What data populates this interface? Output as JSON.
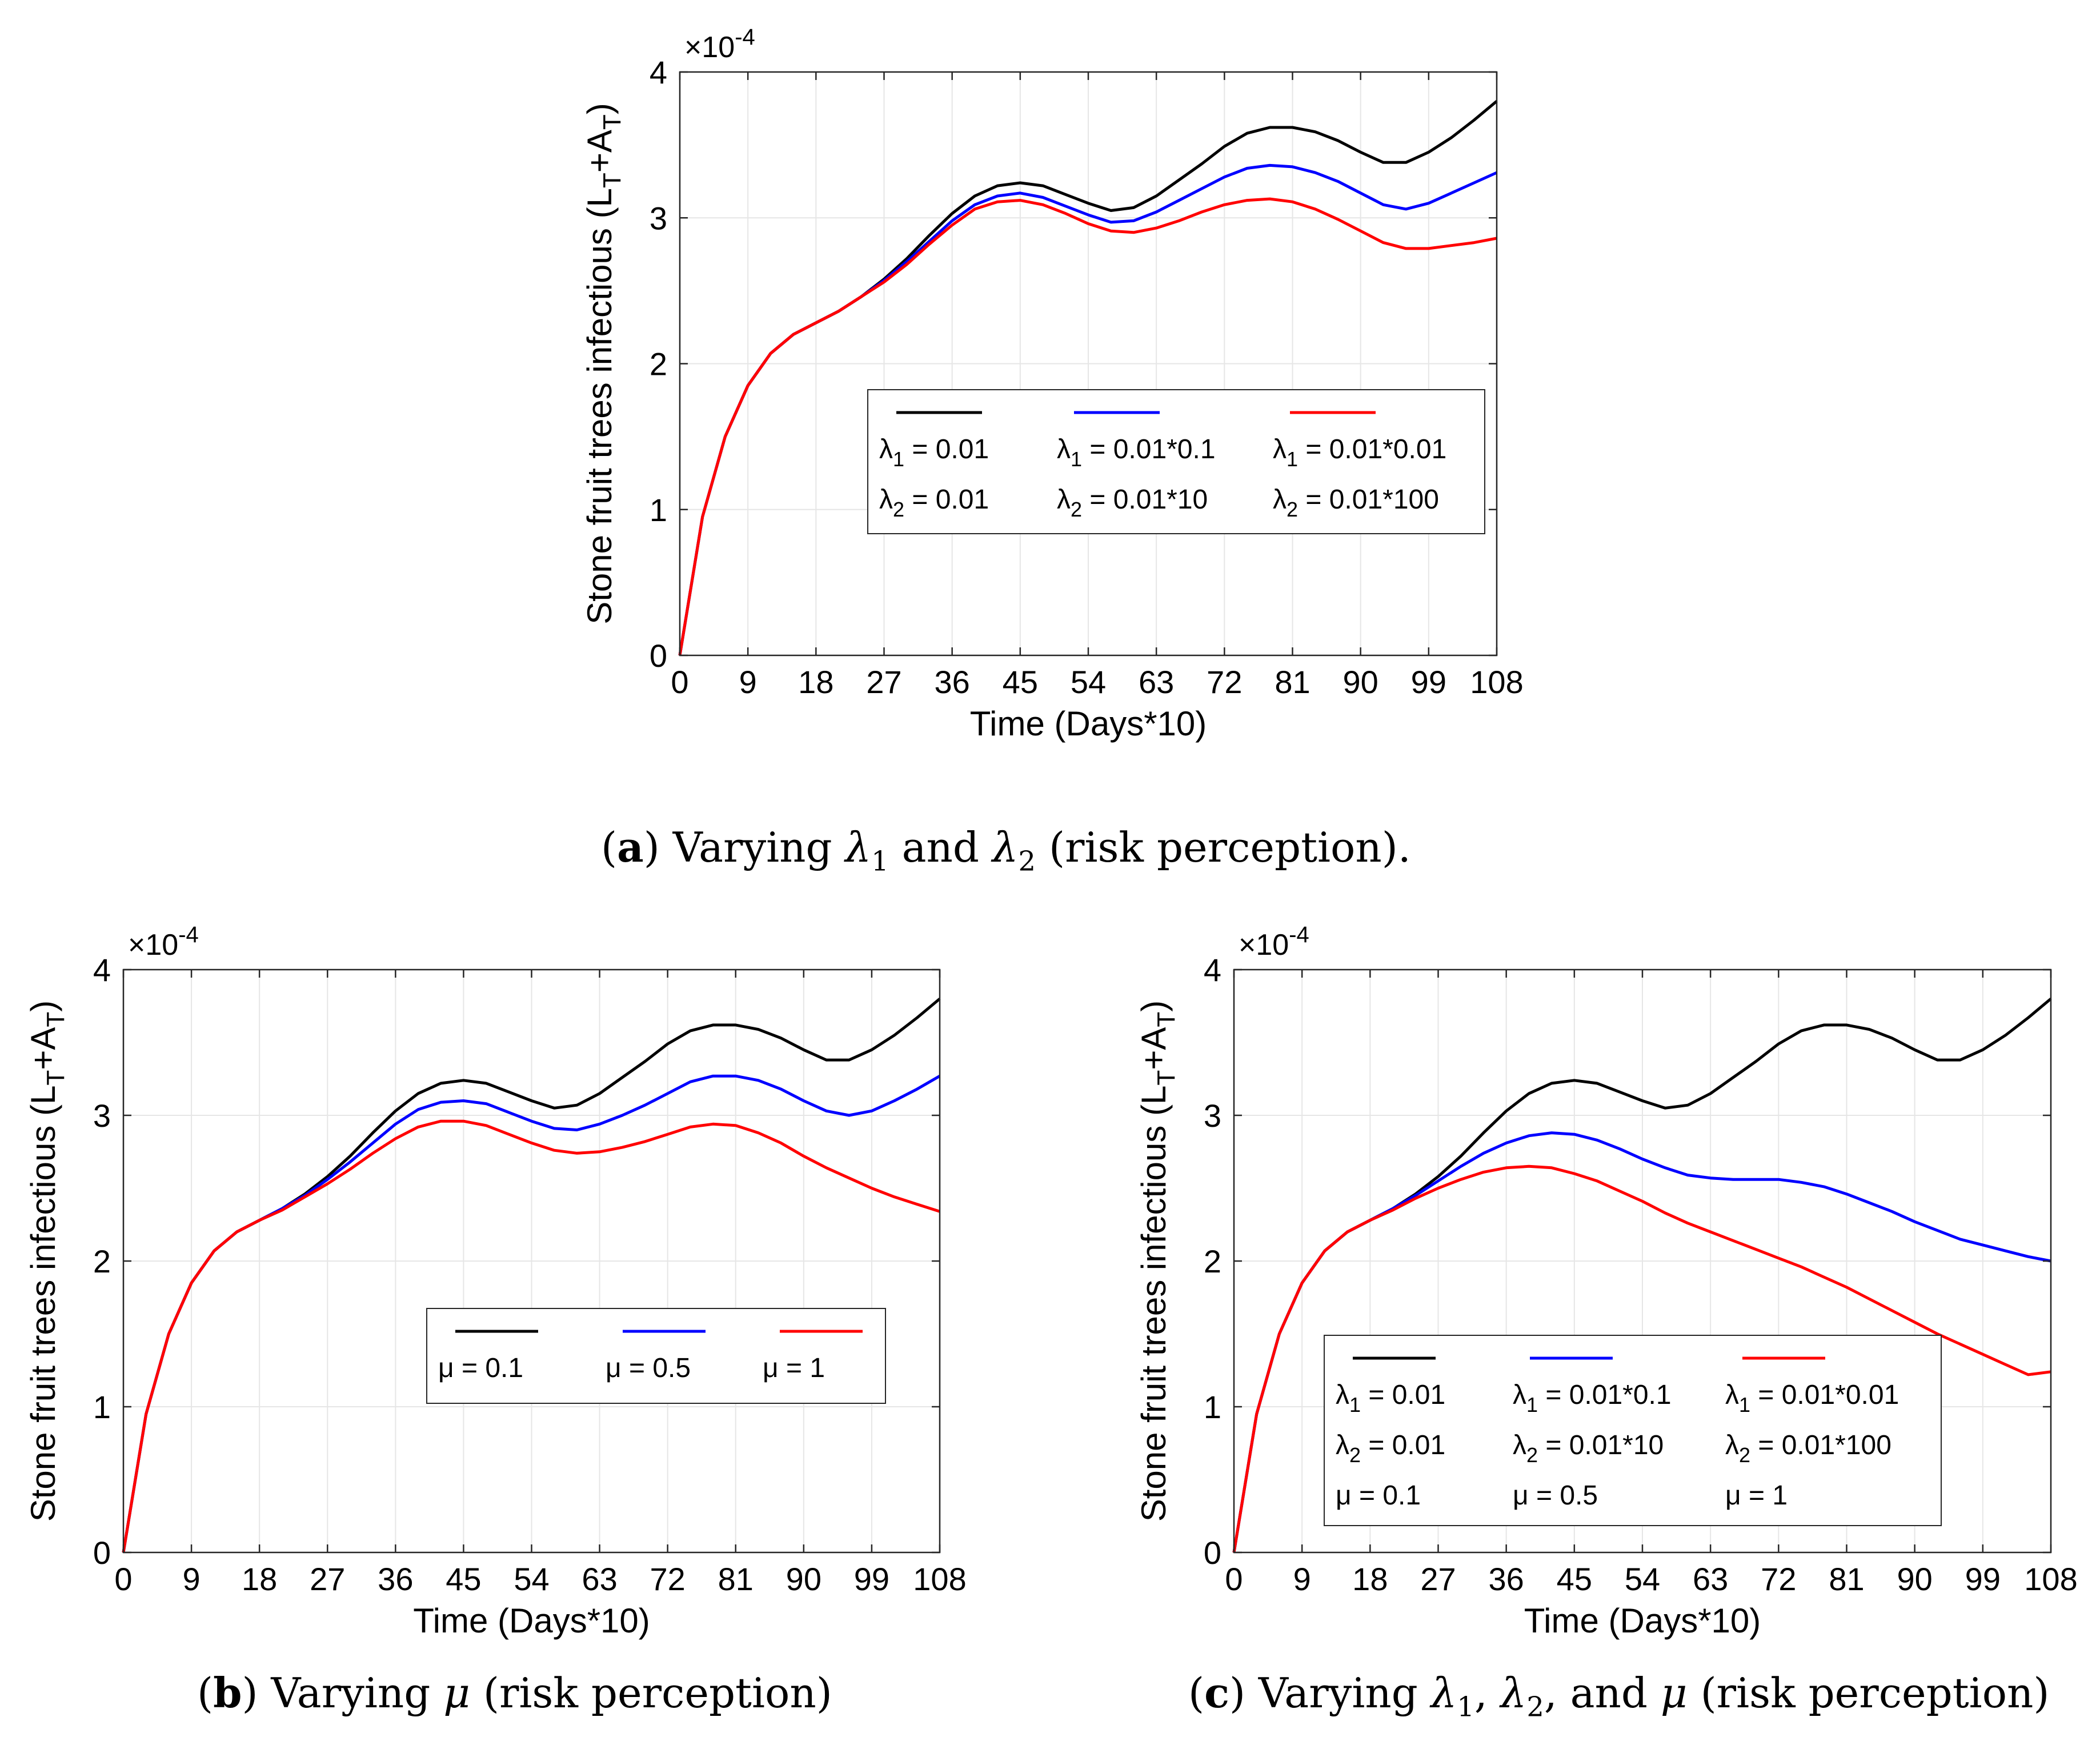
{
  "chart_data": [
    {
      "id": "a",
      "type": "line",
      "title": "",
      "xlabel": "Time (Days*10)",
      "ylabel": "Stone fruit trees infectious (L_T+A_T)",
      "y_multiplier": "×10^-4",
      "xlim": [
        0,
        108
      ],
      "ylim": [
        0,
        4
      ],
      "xticks": [
        0,
        9,
        18,
        27,
        36,
        45,
        54,
        63,
        72,
        81,
        90,
        99,
        108
      ],
      "yticks": [
        0,
        1,
        2,
        3,
        4
      ],
      "grid": true,
      "legend_position": "center-right",
      "series": [
        {
          "name": "black",
          "color": "#000000",
          "legend": [
            "λ1 = 0.01",
            "λ2 = 0.01"
          ],
          "x": [
            0,
            3,
            6,
            9,
            12,
            15,
            18,
            21,
            24,
            27,
            30,
            33,
            36,
            39,
            42,
            45,
            48,
            51,
            54,
            57,
            60,
            63,
            66,
            69,
            72,
            75,
            78,
            81,
            84,
            87,
            90,
            93,
            96,
            99,
            102,
            105,
            108
          ],
          "y": [
            0,
            0.95,
            1.5,
            1.85,
            2.07,
            2.2,
            2.28,
            2.36,
            2.46,
            2.58,
            2.72,
            2.88,
            3.03,
            3.15,
            3.22,
            3.24,
            3.22,
            3.16,
            3.1,
            3.05,
            3.07,
            3.15,
            3.26,
            3.37,
            3.49,
            3.58,
            3.62,
            3.62,
            3.59,
            3.53,
            3.45,
            3.38,
            3.38,
            3.45,
            3.55,
            3.67,
            3.8
          ]
        },
        {
          "name": "blue",
          "color": "#0000ff",
          "legend": [
            "λ1 = 0.01*0.1",
            "λ2 = 0.01*10"
          ],
          "x": [
            0,
            3,
            6,
            9,
            12,
            15,
            18,
            21,
            24,
            27,
            30,
            33,
            36,
            39,
            42,
            45,
            48,
            51,
            54,
            57,
            60,
            63,
            66,
            69,
            72,
            75,
            78,
            81,
            84,
            87,
            90,
            93,
            96,
            99,
            102,
            105,
            108
          ],
          "y": [
            0,
            0.95,
            1.5,
            1.85,
            2.07,
            2.2,
            2.28,
            2.36,
            2.46,
            2.57,
            2.7,
            2.84,
            2.98,
            3.09,
            3.15,
            3.17,
            3.14,
            3.08,
            3.02,
            2.97,
            2.98,
            3.04,
            3.12,
            3.2,
            3.28,
            3.34,
            3.36,
            3.35,
            3.31,
            3.25,
            3.17,
            3.09,
            3.06,
            3.1,
            3.17,
            3.24,
            3.31
          ]
        },
        {
          "name": "red",
          "color": "#ff0000",
          "legend": [
            "λ1 = 0.01*0.01",
            "λ2 = 0.01*100"
          ],
          "x": [
            0,
            3,
            6,
            9,
            12,
            15,
            18,
            21,
            24,
            27,
            30,
            33,
            36,
            39,
            42,
            45,
            48,
            51,
            54,
            57,
            60,
            63,
            66,
            69,
            72,
            75,
            78,
            81,
            84,
            87,
            90,
            93,
            96,
            99,
            102,
            105,
            108
          ],
          "y": [
            0,
            0.95,
            1.5,
            1.85,
            2.07,
            2.2,
            2.28,
            2.36,
            2.46,
            2.56,
            2.68,
            2.82,
            2.95,
            3.06,
            3.11,
            3.12,
            3.09,
            3.03,
            2.96,
            2.91,
            2.9,
            2.93,
            2.98,
            3.04,
            3.09,
            3.12,
            3.13,
            3.11,
            3.06,
            2.99,
            2.91,
            2.83,
            2.79,
            2.79,
            2.81,
            2.83,
            2.86
          ]
        }
      ]
    },
    {
      "id": "b",
      "type": "line",
      "title": "",
      "xlabel": "Time (Days*10)",
      "ylabel": "Stone fruit trees infectious (L_T+A_T)",
      "y_multiplier": "×10^-4",
      "xlim": [
        0,
        108
      ],
      "ylim": [
        0,
        4
      ],
      "xticks": [
        0,
        9,
        18,
        27,
        36,
        45,
        54,
        63,
        72,
        81,
        90,
        99,
        108
      ],
      "yticks": [
        0,
        1,
        2,
        3,
        4
      ],
      "grid": true,
      "legend_position": "center-right",
      "series": [
        {
          "name": "black",
          "color": "#000000",
          "legend": [
            "μ = 0.1"
          ],
          "x": [
            0,
            3,
            6,
            9,
            12,
            15,
            18,
            21,
            24,
            27,
            30,
            33,
            36,
            39,
            42,
            45,
            48,
            51,
            54,
            57,
            60,
            63,
            66,
            69,
            72,
            75,
            78,
            81,
            84,
            87,
            90,
            93,
            96,
            99,
            102,
            105,
            108
          ],
          "y": [
            0,
            0.95,
            1.5,
            1.85,
            2.07,
            2.2,
            2.28,
            2.36,
            2.46,
            2.58,
            2.72,
            2.88,
            3.03,
            3.15,
            3.22,
            3.24,
            3.22,
            3.16,
            3.1,
            3.05,
            3.07,
            3.15,
            3.26,
            3.37,
            3.49,
            3.58,
            3.62,
            3.62,
            3.59,
            3.53,
            3.45,
            3.38,
            3.38,
            3.45,
            3.55,
            3.67,
            3.8
          ]
        },
        {
          "name": "blue",
          "color": "#0000ff",
          "legend": [
            "μ = 0.5"
          ],
          "x": [
            0,
            3,
            6,
            9,
            12,
            15,
            18,
            21,
            24,
            27,
            30,
            33,
            36,
            39,
            42,
            45,
            48,
            51,
            54,
            57,
            60,
            63,
            66,
            69,
            72,
            75,
            78,
            81,
            84,
            87,
            90,
            93,
            96,
            99,
            102,
            105,
            108
          ],
          "y": [
            0,
            0.95,
            1.5,
            1.85,
            2.07,
            2.2,
            2.28,
            2.36,
            2.45,
            2.56,
            2.68,
            2.81,
            2.94,
            3.04,
            3.09,
            3.1,
            3.08,
            3.02,
            2.96,
            2.91,
            2.9,
            2.94,
            3.0,
            3.07,
            3.15,
            3.23,
            3.27,
            3.27,
            3.24,
            3.18,
            3.1,
            3.03,
            3.0,
            3.03,
            3.1,
            3.18,
            3.27
          ]
        },
        {
          "name": "red",
          "color": "#ff0000",
          "legend": [
            "μ = 1"
          ],
          "x": [
            0,
            3,
            6,
            9,
            12,
            15,
            18,
            21,
            24,
            27,
            30,
            33,
            36,
            39,
            42,
            45,
            48,
            51,
            54,
            57,
            60,
            63,
            66,
            69,
            72,
            75,
            78,
            81,
            84,
            87,
            90,
            93,
            96,
            99,
            102,
            105,
            108
          ],
          "y": [
            0,
            0.95,
            1.5,
            1.85,
            2.07,
            2.2,
            2.28,
            2.35,
            2.44,
            2.53,
            2.63,
            2.74,
            2.84,
            2.92,
            2.96,
            2.96,
            2.93,
            2.87,
            2.81,
            2.76,
            2.74,
            2.75,
            2.78,
            2.82,
            2.87,
            2.92,
            2.94,
            2.93,
            2.88,
            2.81,
            2.72,
            2.64,
            2.57,
            2.5,
            2.44,
            2.39,
            2.34
          ]
        }
      ]
    },
    {
      "id": "c",
      "type": "line",
      "title": "",
      "xlabel": "Time (Days*10)",
      "ylabel": "Stone fruit trees infectious (L_T+A_T)",
      "y_multiplier": "×10^-4",
      "xlim": [
        0,
        108
      ],
      "ylim": [
        0,
        4
      ],
      "xticks": [
        0,
        9,
        18,
        27,
        36,
        45,
        54,
        63,
        72,
        81,
        90,
        99,
        108
      ],
      "yticks": [
        0,
        1,
        2,
        3,
        4
      ],
      "grid": true,
      "legend_position": "bottom-right",
      "series": [
        {
          "name": "black",
          "color": "#000000",
          "legend": [
            "λ1 = 0.01",
            "λ2 = 0.01",
            "μ = 0.1"
          ],
          "x": [
            0,
            3,
            6,
            9,
            12,
            15,
            18,
            21,
            24,
            27,
            30,
            33,
            36,
            39,
            42,
            45,
            48,
            51,
            54,
            57,
            60,
            63,
            66,
            69,
            72,
            75,
            78,
            81,
            84,
            87,
            90,
            93,
            96,
            99,
            102,
            105,
            108
          ],
          "y": [
            0,
            0.95,
            1.5,
            1.85,
            2.07,
            2.2,
            2.28,
            2.36,
            2.46,
            2.58,
            2.72,
            2.88,
            3.03,
            3.15,
            3.22,
            3.24,
            3.22,
            3.16,
            3.1,
            3.05,
            3.07,
            3.15,
            3.26,
            3.37,
            3.49,
            3.58,
            3.62,
            3.62,
            3.59,
            3.53,
            3.45,
            3.38,
            3.38,
            3.45,
            3.55,
            3.67,
            3.8
          ]
        },
        {
          "name": "blue",
          "color": "#0000ff",
          "legend": [
            "λ1 = 0.01*0.1",
            "λ2 = 0.01*10",
            "μ = 0.5"
          ],
          "x": [
            0,
            3,
            6,
            9,
            12,
            15,
            18,
            21,
            24,
            27,
            30,
            33,
            36,
            39,
            42,
            45,
            48,
            51,
            54,
            57,
            60,
            63,
            66,
            69,
            72,
            75,
            78,
            81,
            84,
            87,
            90,
            93,
            96,
            99,
            102,
            105,
            108
          ],
          "y": [
            0,
            0.95,
            1.5,
            1.85,
            2.07,
            2.2,
            2.28,
            2.36,
            2.45,
            2.55,
            2.65,
            2.74,
            2.81,
            2.86,
            2.88,
            2.87,
            2.83,
            2.77,
            2.7,
            2.64,
            2.59,
            2.57,
            2.56,
            2.56,
            2.56,
            2.54,
            2.51,
            2.46,
            2.4,
            2.34,
            2.27,
            2.21,
            2.15,
            2.11,
            2.07,
            2.03,
            2.0
          ]
        },
        {
          "name": "red",
          "color": "#ff0000",
          "legend": [
            "λ1 = 0.01*0.01",
            "λ2 = 0.01*100",
            "μ = 1"
          ],
          "x": [
            0,
            3,
            6,
            9,
            12,
            15,
            18,
            21,
            24,
            27,
            30,
            33,
            36,
            39,
            42,
            45,
            48,
            51,
            54,
            57,
            60,
            63,
            66,
            69,
            72,
            75,
            78,
            81,
            84,
            87,
            90,
            93,
            96,
            99,
            102,
            105,
            108
          ],
          "y": [
            0,
            0.95,
            1.5,
            1.85,
            2.07,
            2.2,
            2.28,
            2.35,
            2.43,
            2.5,
            2.56,
            2.61,
            2.64,
            2.65,
            2.64,
            2.6,
            2.55,
            2.48,
            2.41,
            2.33,
            2.26,
            2.2,
            2.14,
            2.08,
            2.02,
            1.96,
            1.89,
            1.82,
            1.74,
            1.66,
            1.58,
            1.5,
            1.43,
            1.36,
            1.29,
            1.22,
            1.24
          ]
        }
      ]
    }
  ],
  "captions": {
    "a": {
      "label": "a",
      "text_pre": " Varying ",
      "v1": "λ",
      "s1": "1",
      "mid": " and ",
      "v2": "λ",
      "s2": "2",
      "text_post": " (risk perception)."
    },
    "b": {
      "label": "b",
      "text_pre": " Varying ",
      "v1": "μ",
      "text_post": " (risk perception)"
    },
    "c": {
      "label": "c",
      "text_pre": " Varying ",
      "v1": "λ",
      "s1": "1",
      "sep1": ", ",
      "v2": "λ",
      "s2": "2",
      "sep2": ", and ",
      "v3": "μ",
      "text_post": " (risk perception)"
    }
  }
}
